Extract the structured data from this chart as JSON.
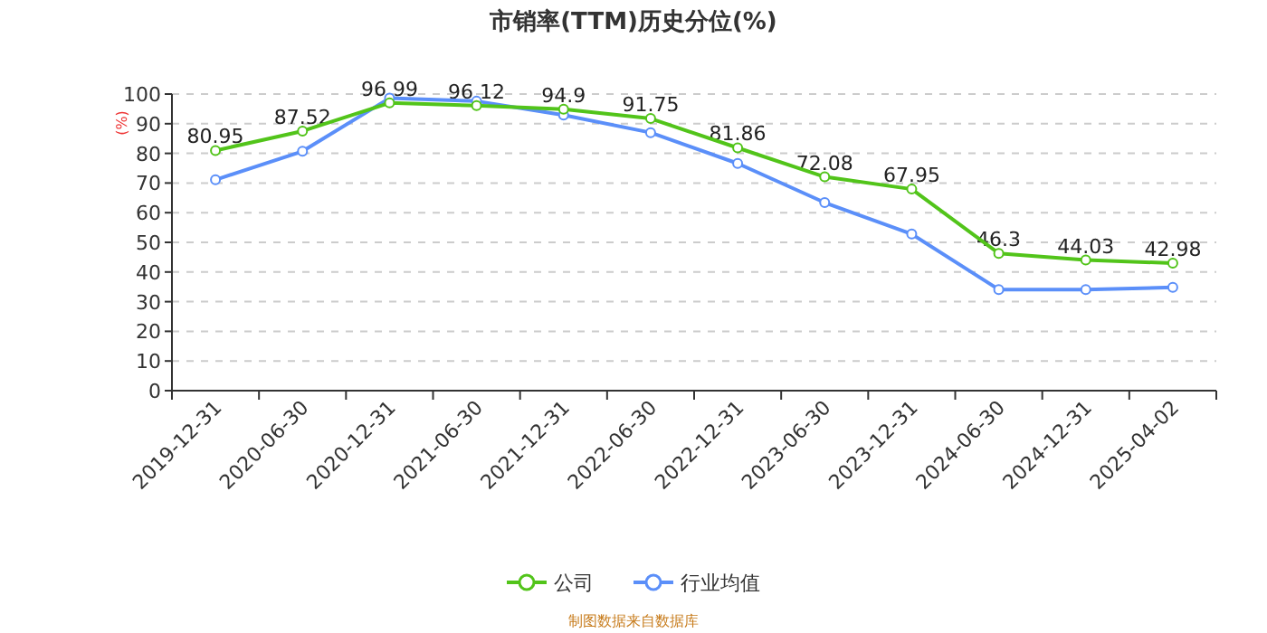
{
  "chart_data": {
    "type": "line",
    "title": "市销率(TTM)历史分位(%)",
    "ylabel": "(%)",
    "categories": [
      "2019-12-31",
      "2020-06-30",
      "2020-12-31",
      "2021-06-30",
      "2021-12-31",
      "2022-06-30",
      "2022-12-31",
      "2023-06-30",
      "2023-12-31",
      "2024-06-30",
      "2024-12-31",
      "2025-04-02"
    ],
    "series": [
      {
        "name": "公司",
        "color": "#52c41a",
        "values": [
          80.95,
          87.52,
          96.99,
          96.12,
          94.9,
          91.75,
          81.86,
          72.08,
          67.95,
          46.3,
          44.03,
          42.98
        ],
        "value_labels": [
          "80.95",
          "87.52",
          "96.99",
          "96.12",
          "94.9",
          "91.75",
          "81.86",
          "72.08",
          "67.95",
          "46.3",
          "44.03",
          "42.98"
        ]
      },
      {
        "name": "行业均值",
        "color": "#5b8ff9",
        "values": [
          71.1,
          80.7,
          98.6,
          97.6,
          92.9,
          87.0,
          76.6,
          63.4,
          52.8,
          34.1,
          34.1,
          34.8
        ]
      }
    ],
    "ylim": [
      0,
      100
    ],
    "yticks": [
      0,
      10,
      20,
      30,
      40,
      50,
      60,
      70,
      80,
      90,
      100
    ],
    "grid": "y",
    "legend": "bottom",
    "marker": "circle",
    "line_style": "solid",
    "annotations": [
      "制图数据来自数据库"
    ]
  }
}
